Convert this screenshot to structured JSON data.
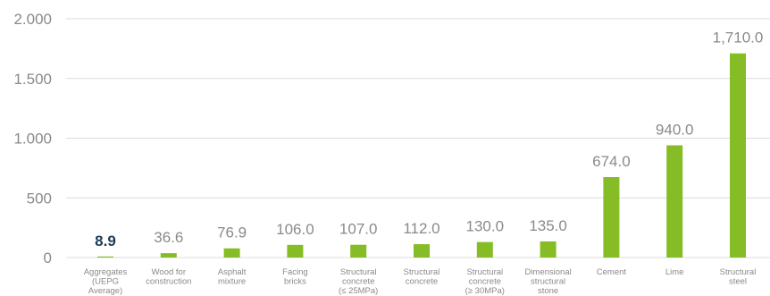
{
  "chart_data": {
    "type": "bar",
    "title": "",
    "xlabel": "",
    "ylabel": "",
    "ylim": [
      0,
      2000
    ],
    "yticks": [
      {
        "value": 0,
        "label": "0"
      },
      {
        "value": 500,
        "label": "500"
      },
      {
        "value": 1000,
        "label": "1.000"
      },
      {
        "value": 1500,
        "label": "1.500"
      },
      {
        "value": 2000,
        "label": "2.000"
      }
    ],
    "grid": true,
    "categories": [
      [
        "Aggregates",
        "(UEPG",
        "Average)"
      ],
      [
        "Wood for",
        "construction"
      ],
      [
        "Asphalt",
        "mixture"
      ],
      [
        "Facing",
        "bricks"
      ],
      [
        "Structural",
        "concrete",
        "(≤ 25MPa)"
      ],
      [
        "Structural",
        "concrete"
      ],
      [
        "Structural",
        "concrete",
        "(≥ 30MPa)"
      ],
      [
        "Dimensional",
        "structural",
        "stone"
      ],
      [
        "Cement"
      ],
      [
        "Lime"
      ],
      [
        "Structural",
        "steel"
      ]
    ],
    "values": [
      8.9,
      36.6,
      76.9,
      106.0,
      107.0,
      112.0,
      130.0,
      135.0,
      674.0,
      940.0,
      1710.0
    ],
    "value_labels": [
      "8.9",
      "36.6",
      "76.9",
      "106.0",
      "107.0",
      "112.0",
      "130.0",
      "135.0",
      "674.0",
      "940.0",
      "1,710.0"
    ],
    "highlight_index": 0,
    "colors": {
      "bar": "#86bc25",
      "grid": "#dcdcdc",
      "text": "#8a8a8a",
      "highlight_text": "#1f3b57"
    }
  }
}
